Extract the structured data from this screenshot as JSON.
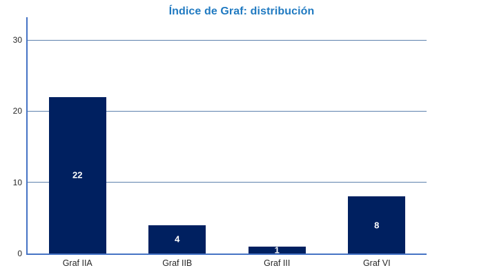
{
  "chart_data": {
    "type": "bar",
    "title": "Índice de Graf: distribución",
    "categories": [
      "Graf IIA",
      "Graf IIB",
      "Graf III",
      "Graf VI"
    ],
    "values": [
      22,
      4,
      1,
      8
    ],
    "data_labels": [
      "22",
      "4",
      "1",
      "8"
    ],
    "xlabel": "",
    "ylabel": "",
    "ylim": [
      0,
      33
    ],
    "yticks": [
      0,
      10,
      20,
      30
    ],
    "grid": "horizontal-major",
    "legend_position": "none",
    "colors": {
      "bar_fill": "#002060",
      "axis_line": "#4472C4",
      "gridline": "#5B80AC",
      "title_text": "#207AC1",
      "data_label_text": "#FFFFFF",
      "axis_label_text": "#262626",
      "background": "#FFFFFF"
    }
  }
}
